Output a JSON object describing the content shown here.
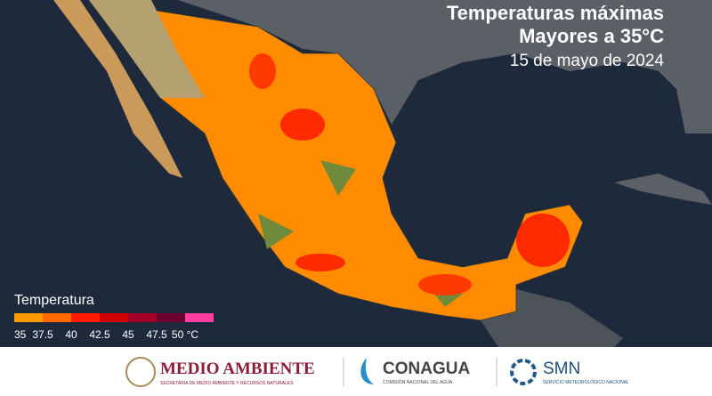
{
  "title": {
    "line1": "Temperaturas máximas",
    "line2": "Mayores a 35°C",
    "date": "15 de mayo de 2024"
  },
  "legend": {
    "title": "Temperatura",
    "colors": [
      "#ff9a00",
      "#ff6a00",
      "#ff1a00",
      "#d10000",
      "#a3002a",
      "#6e0030",
      "#ff3fa0"
    ],
    "labels": [
      "35",
      "37.5",
      "40",
      "42.5",
      "45",
      "47.5",
      "50 °C"
    ]
  },
  "footer": {
    "semarnat": {
      "name": "MEDIO AMBIENTE",
      "sub": "SECRETARÍA DE MEDIO AMBIENTE Y RECURSOS NATURALES"
    },
    "conagua": {
      "name": "CONAGUA",
      "sub": "COMISIÓN NACIONAL DEL AGUA"
    },
    "smn": {
      "name": "SMN",
      "sub": "SERVICIO METEOROLÓGICO NACIONAL"
    }
  }
}
